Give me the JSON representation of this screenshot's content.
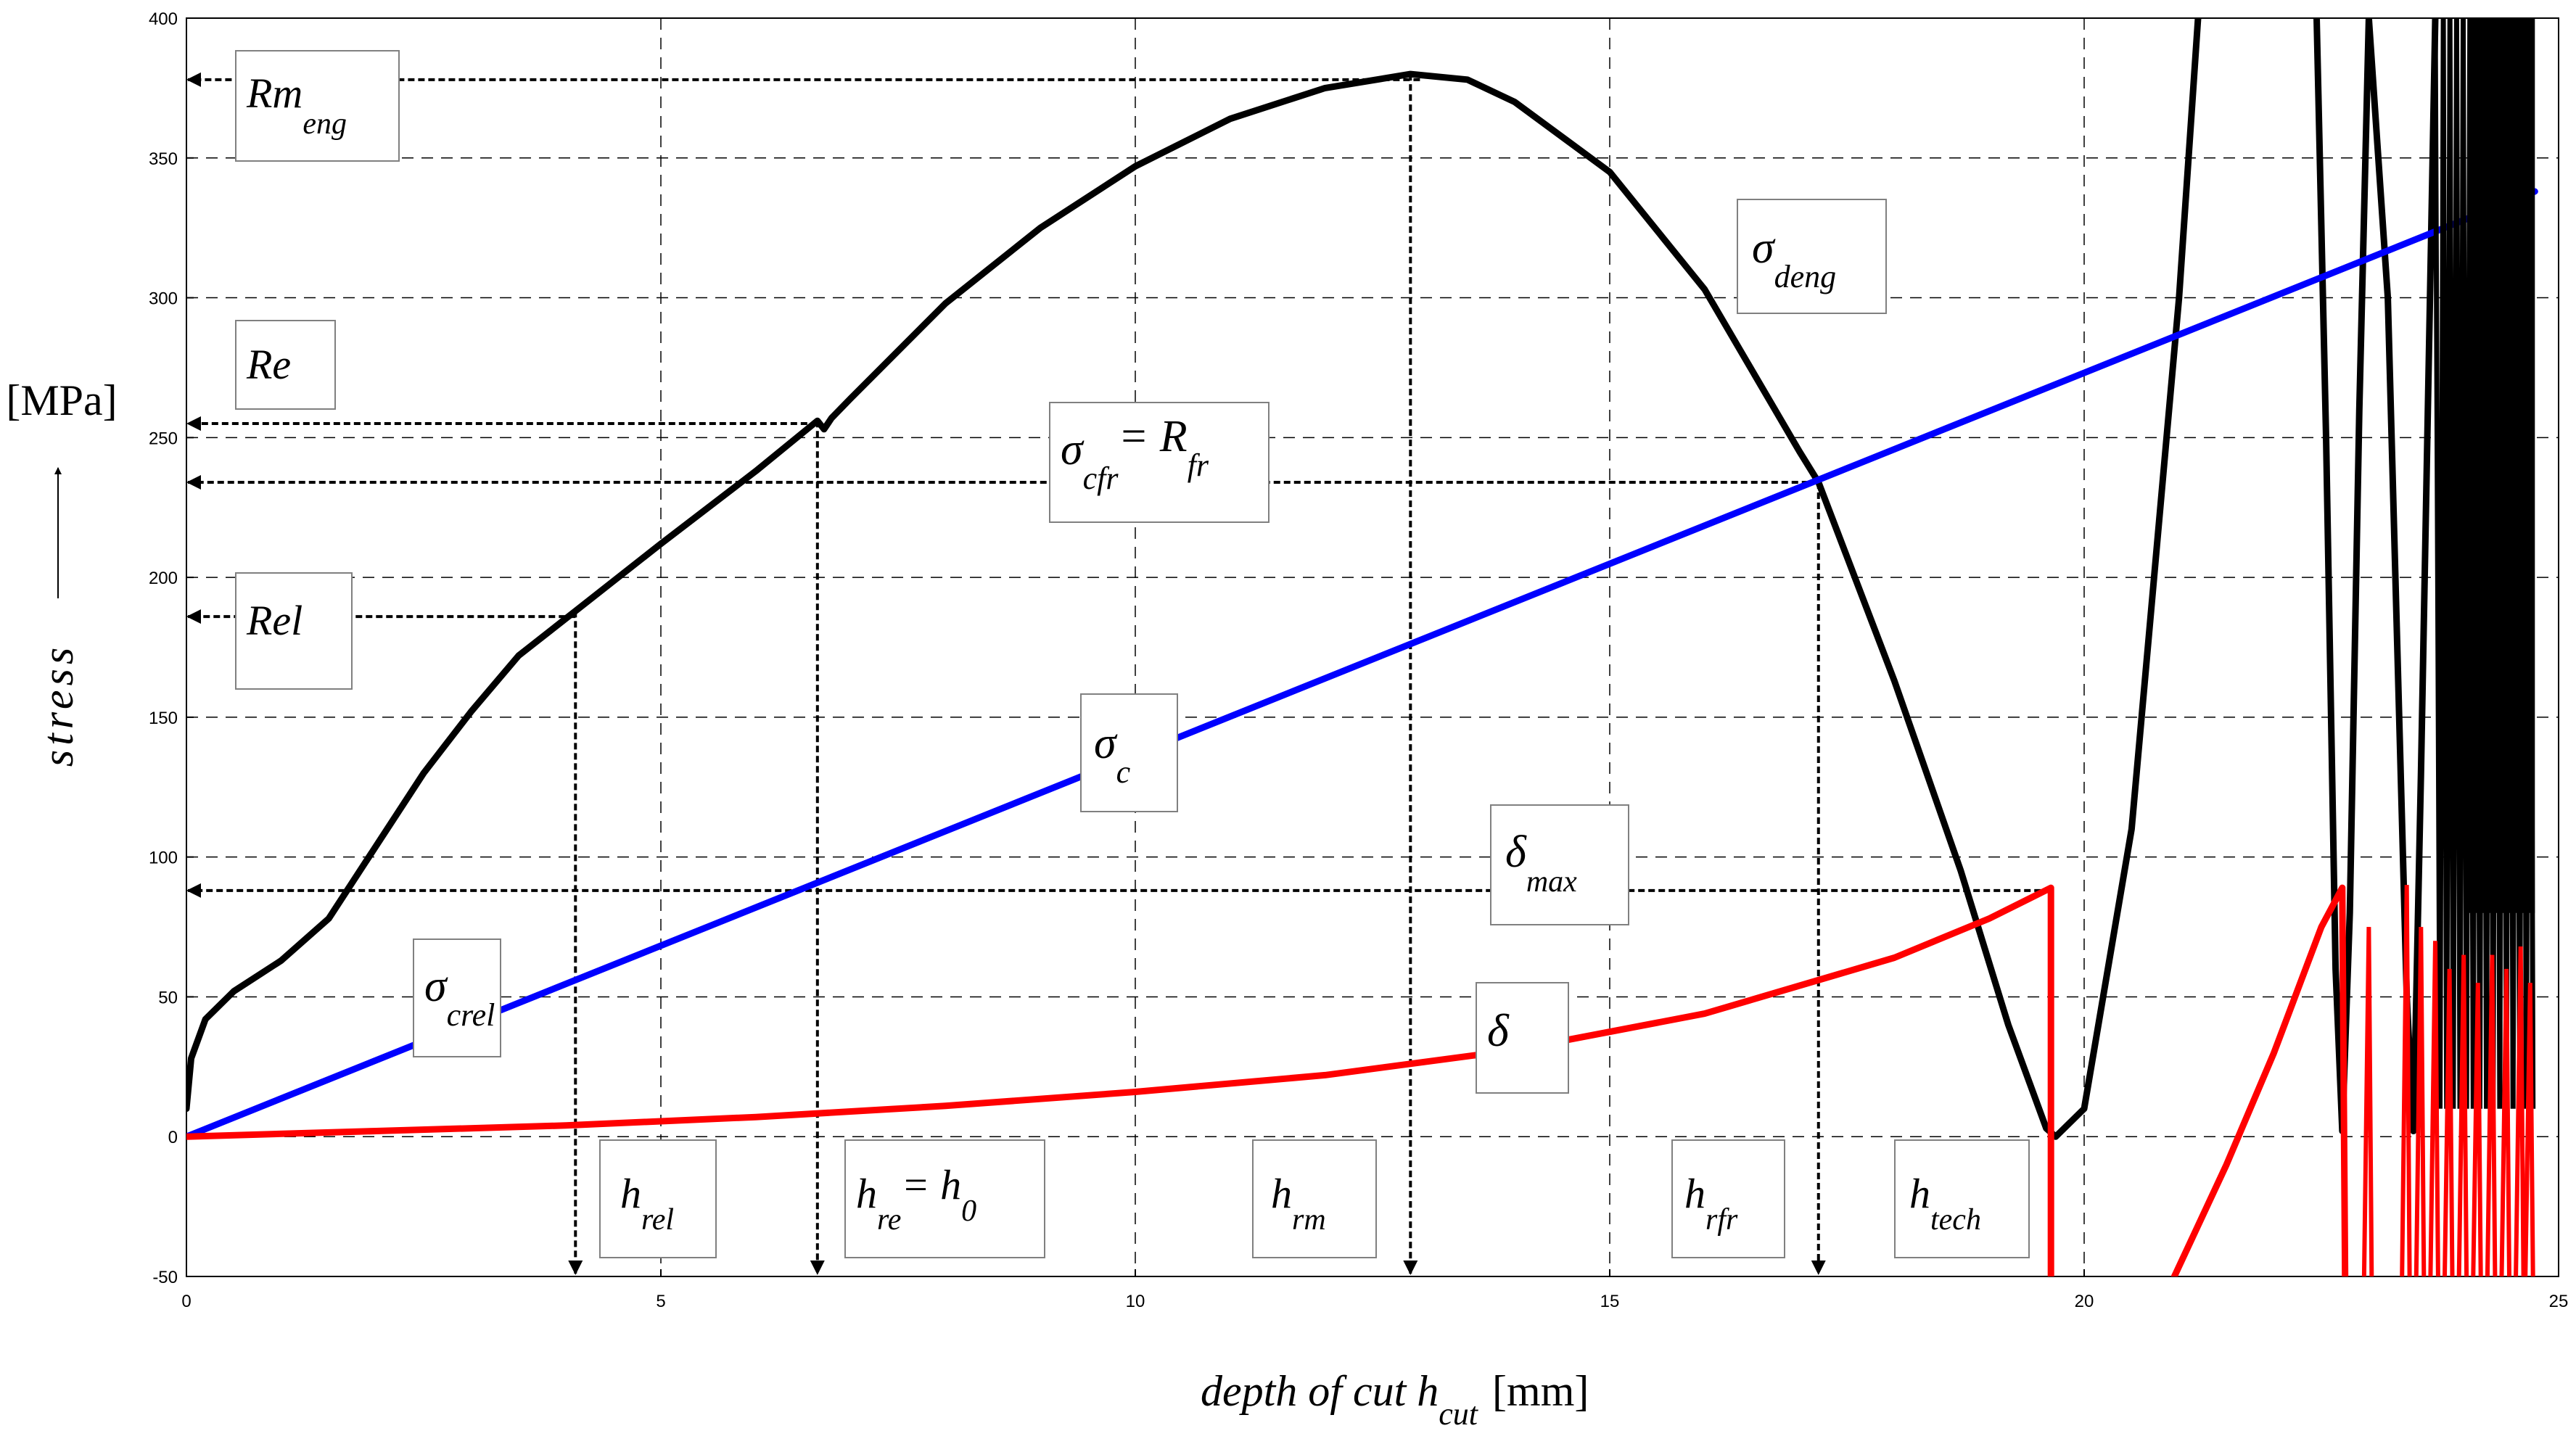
{
  "chart_data": {
    "type": "line",
    "xlabel": "depth of cut h",
    "xlabel_sub": "cut",
    "xlabel_unit": "[mm]",
    "ylabel": "stress",
    "ylabel_unit": "[MPa]",
    "xlim": [
      0,
      25
    ],
    "ylim": [
      -50,
      400
    ],
    "x_ticks": [
      0,
      5,
      10,
      15,
      20,
      25
    ],
    "y_ticks": [
      -50,
      0,
      50,
      100,
      150,
      200,
      250,
      300,
      350,
      400
    ],
    "grid": true,
    "series": [
      {
        "key": "sigma_deng",
        "color": "#000000",
        "points": [
          [
            0,
            10
          ],
          [
            0.05,
            28
          ],
          [
            0.2,
            42
          ],
          [
            0.5,
            52
          ],
          [
            1,
            63
          ],
          [
            1.5,
            78
          ],
          [
            2,
            104
          ],
          [
            2.5,
            130
          ],
          [
            3,
            152
          ],
          [
            3.5,
            172
          ],
          [
            4.1,
            188
          ],
          [
            5,
            212
          ],
          [
            6,
            238
          ],
          [
            6.65,
            256
          ],
          [
            6.72,
            253
          ],
          [
            6.8,
            257
          ],
          [
            7,
            264
          ],
          [
            8,
            298
          ],
          [
            9,
            325
          ],
          [
            10,
            347
          ],
          [
            11,
            364
          ],
          [
            12,
            375
          ],
          [
            12.9,
            380
          ],
          [
            13.5,
            378
          ],
          [
            14,
            370
          ],
          [
            15,
            345
          ],
          [
            16,
            303
          ],
          [
            17,
            245
          ],
          [
            17.2,
            234
          ],
          [
            18,
            163
          ],
          [
            18.7,
            95
          ],
          [
            19.2,
            40
          ],
          [
            19.6,
            3
          ],
          [
            19.7,
            0
          ],
          [
            20,
            10
          ],
          [
            20.5,
            110
          ],
          [
            21,
            300
          ],
          [
            21.2,
            400
          ]
        ]
      },
      {
        "key": "sigma_deng_tail",
        "color": "#000000",
        "points": [
          [
            22.45,
            400
          ],
          [
            22.55,
            250
          ],
          [
            22.65,
            60
          ],
          [
            22.72,
            2
          ],
          [
            22.8,
            80
          ],
          [
            22.9,
            260
          ],
          [
            23,
            400
          ],
          [
            23.2,
            300
          ],
          [
            23.4,
            50
          ],
          [
            23.47,
            2
          ],
          [
            23.55,
            130
          ],
          [
            23.7,
            400
          ]
        ]
      },
      {
        "key": "sigma_c",
        "color": "#0000ff",
        "points": [
          [
            0,
            0
          ],
          [
            24.75,
            338
          ]
        ]
      },
      {
        "key": "delta",
        "color": "#ff0000",
        "points": [
          [
            0,
            0
          ],
          [
            2,
            2
          ],
          [
            4,
            4
          ],
          [
            6,
            7
          ],
          [
            8,
            11
          ],
          [
            10,
            16
          ],
          [
            12,
            22
          ],
          [
            14,
            31
          ],
          [
            16,
            44
          ],
          [
            18,
            64
          ],
          [
            19,
            78
          ],
          [
            19.65,
            89
          ],
          [
            19.65,
            -50
          ]
        ]
      },
      {
        "key": "delta_tail",
        "color": "#ff0000",
        "points": [
          [
            20.95,
            -50
          ],
          [
            21.5,
            -10
          ],
          [
            22,
            30
          ],
          [
            22.5,
            75
          ],
          [
            22.72,
            89
          ],
          [
            22.75,
            -50
          ]
        ]
      }
    ],
    "markers": [
      {
        "label": "Rm",
        "sub": "eng",
        "y": 378
      },
      {
        "label": "Re",
        "y": 255
      },
      {
        "label": "Rel",
        "y": 186
      },
      {
        "label": "δ",
        "sub": "max",
        "y": 88
      }
    ],
    "vmarkers": [
      {
        "label": "h",
        "sub": "rel",
        "x": 4.1
      },
      {
        "label": "h",
        "sub": "re",
        "suffix": "= h",
        "suffix_sub": "0",
        "x": 6.65
      },
      {
        "label": "h",
        "sub": "rm",
        "x": 12.9
      },
      {
        "label": "h",
        "sub": "rfr",
        "x": 17.2
      },
      {
        "label": "h",
        "sub": "tech",
        "x": 19.65
      }
    ],
    "annotations": [
      {
        "label": "σ",
        "sub": "deng"
      },
      {
        "label": "σ",
        "sub": "cfr",
        "suffix": "= R",
        "suffix_sub": "fr"
      },
      {
        "label": "σ",
        "sub": "c"
      },
      {
        "label": "σ",
        "sub": "crel"
      },
      {
        "label": "δ"
      }
    ]
  }
}
